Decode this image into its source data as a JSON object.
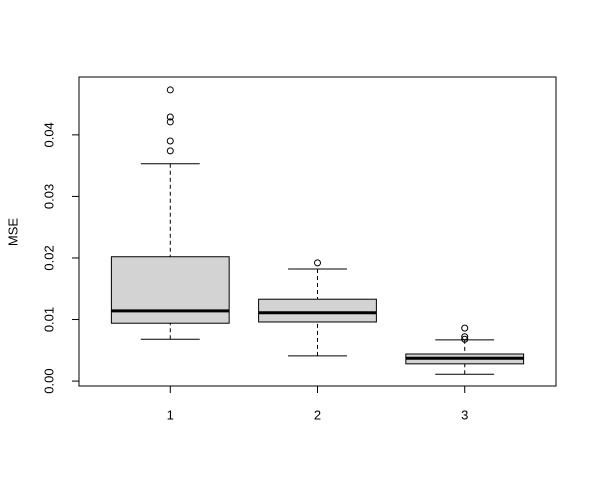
{
  "chart_data": {
    "type": "boxplot",
    "ylabel": "MSE",
    "categories": [
      "1",
      "2",
      "3"
    ],
    "boxes": [
      {
        "min": 0.0068,
        "q1": 0.0094,
        "median": 0.0114,
        "q3": 0.0202,
        "max": 0.0353,
        "outliers": [
          0.0374,
          0.039,
          0.0421,
          0.0429,
          0.0473
        ]
      },
      {
        "min": 0.0041,
        "q1": 0.0096,
        "median": 0.0111,
        "q3": 0.0133,
        "max": 0.0182,
        "outliers": [
          0.0192
        ]
      },
      {
        "min": 0.0011,
        "q1": 0.0028,
        "median": 0.0037,
        "q3": 0.0044,
        "max": 0.0067,
        "outliers": [
          0.0068,
          0.0072,
          0.0086
        ]
      }
    ],
    "color": "#d3d3d3",
    "ylim": [
      -0.0008,
      0.0494
    ],
    "yticks": [
      {
        "value": 0,
        "label": "0.00"
      },
      0.01,
      0.02,
      0.03,
      0.04
    ]
  }
}
